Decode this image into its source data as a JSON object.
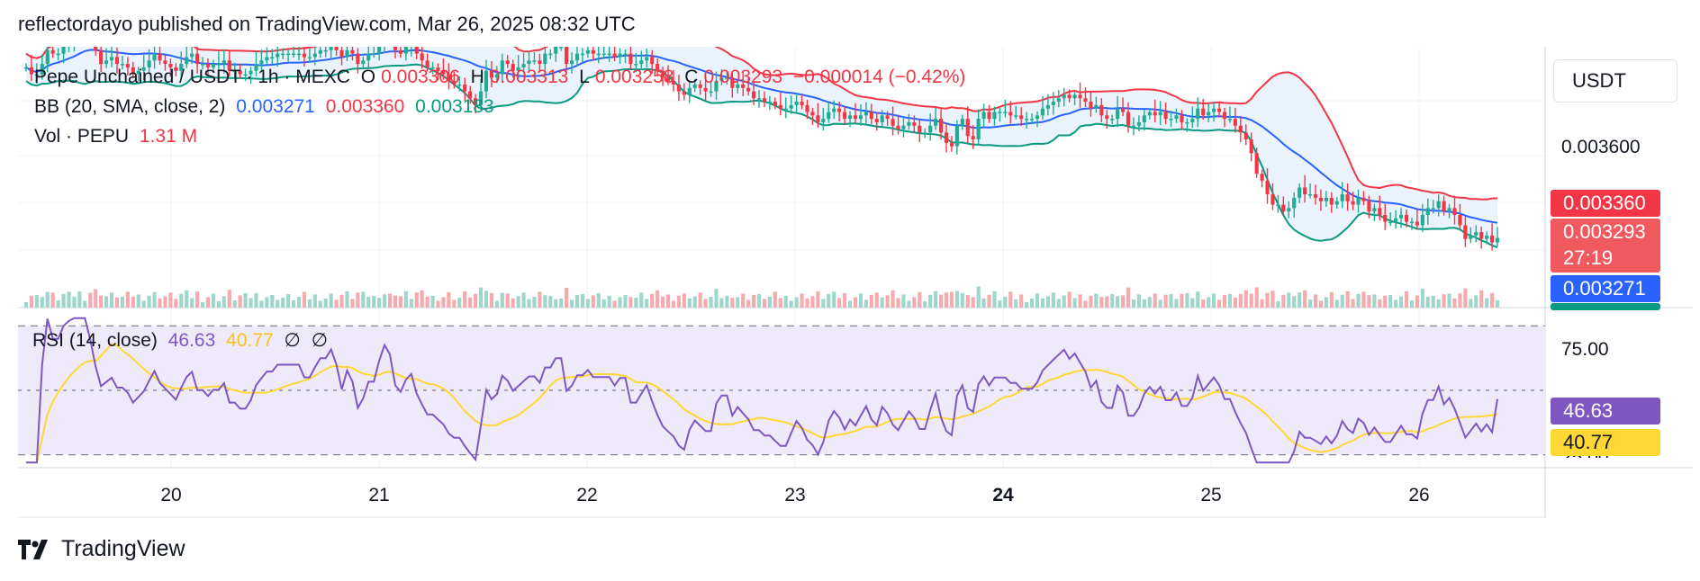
{
  "header": {
    "publisher_line": "reflectordayo published on TradingView.com, Mar 26, 2025 08:32 UTC"
  },
  "legend": {
    "symbol": "Pepe Unchained / USDT · 1h · MEXC",
    "o_label": "O",
    "o_value": "0.003306",
    "h_label": "H",
    "h_value": "0.003313",
    "l_label": "L",
    "l_value": "0.003258",
    "c_label": "C",
    "c_value": "0.003293",
    "change": "−0.000014 (−0.42%)",
    "bb_label": "BB (20, SMA, close, 2)",
    "bb_basis": "0.003271",
    "bb_upper": "0.003360",
    "bb_lower": "0.003183",
    "vol_label": "Vol · PEPU",
    "vol_value": "1.31 M",
    "rsi_label": "RSI (14, close)",
    "rsi_value": "46.63",
    "rsi_ma": "40.77",
    "rsi_na_1": "∅",
    "rsi_na_2": "∅"
  },
  "axis": {
    "currency": "USDT",
    "price_tick": "0.003600",
    "rsi_upper_tick": "75.00",
    "rsi_lower_tick": "25.00",
    "x_ticks": [
      "20",
      "21",
      "22",
      "23",
      "24",
      "25",
      "26"
    ]
  },
  "price_tags": {
    "bb_upper": "0.003360",
    "last_price": "0.003293",
    "countdown": "27:19",
    "bb_basis": "0.003271"
  },
  "rsi_tags": {
    "rsi": "46.63",
    "rsi_ma": "40.77"
  },
  "footer": {
    "brand": "TradingView"
  },
  "colors": {
    "up": "#22ab94",
    "down": "#f23645",
    "bb_basis": "#2962ff",
    "bb_upper": "#f23645",
    "bb_lower": "#089981",
    "bb_fill": "#eaf3fb",
    "rsi_line": "#7e57c2",
    "rsi_ma": "#fdd835",
    "rsi_band": "#efeafa",
    "grid": "#f0f3fa"
  },
  "chart_data": [
    {
      "type": "candlestick",
      "title": "Pepe Unchained / USDT · 1h · MEXC",
      "ylim": [
        0.00309,
        0.00385
      ],
      "x_ticks": [
        "20",
        "21",
        "22",
        "23",
        "24",
        "25",
        "26"
      ],
      "close_series": [
        0.00379,
        0.00377,
        0.00377,
        0.0038,
        0.00384,
        0.00383,
        0.00383,
        0.00385,
        0.00386,
        0.00388,
        0.00391,
        0.00392,
        0.00388,
        0.00384,
        0.0038,
        0.00381,
        0.00382,
        0.0038,
        0.0038,
        0.00379,
        0.00377,
        0.00378,
        0.00379,
        0.00381,
        0.00383,
        0.00381,
        0.0038,
        0.00379,
        0.00378,
        0.0038,
        0.00382,
        0.00383,
        0.0038,
        0.0038,
        0.00379,
        0.0038,
        0.0038,
        0.00381,
        0.00378,
        0.00378,
        0.00377,
        0.00377,
        0.00378,
        0.0038,
        0.00381,
        0.00382,
        0.00382,
        0.00383,
        0.00383,
        0.00383,
        0.00383,
        0.00383,
        0.00382,
        0.00382,
        0.00383,
        0.00384,
        0.00384,
        0.00385,
        0.00384,
        0.00382,
        0.00384,
        0.00383,
        0.0038,
        0.00381,
        0.00383,
        0.00383,
        0.00386,
        0.00389,
        0.00388,
        0.00384,
        0.00383,
        0.00385,
        0.00386,
        0.00383,
        0.00381,
        0.00379,
        0.00379,
        0.00378,
        0.00377,
        0.00375,
        0.00374,
        0.00374,
        0.00372,
        0.0037,
        0.00368,
        0.00372,
        0.00378,
        0.00376,
        0.00377,
        0.00381,
        0.0038,
        0.00378,
        0.00379,
        0.0038,
        0.00381,
        0.00381,
        0.0038,
        0.00383,
        0.00383,
        0.00385,
        0.00385,
        0.0038,
        0.00381,
        0.00383,
        0.00383,
        0.00384,
        0.00383,
        0.00383,
        0.00383,
        0.00383,
        0.00382,
        0.00383,
        0.00383,
        0.0038,
        0.0038,
        0.00381,
        0.00382,
        0.0038,
        0.00378,
        0.00376,
        0.00375,
        0.00374,
        0.00372,
        0.00371,
        0.00373,
        0.00374,
        0.00373,
        0.00372,
        0.00372,
        0.00375,
        0.00376,
        0.00376,
        0.00373,
        0.00374,
        0.00373,
        0.00372,
        0.0037,
        0.0037,
        0.00369,
        0.00369,
        0.00368,
        0.00367,
        0.00367,
        0.00368,
        0.00369,
        0.00368,
        0.00366,
        0.00365,
        0.00363,
        0.00364,
        0.00366,
        0.00367,
        0.00366,
        0.00364,
        0.00365,
        0.00364,
        0.00365,
        0.00366,
        0.00364,
        0.00363,
        0.00365,
        0.00364,
        0.00362,
        0.00361,
        0.00362,
        0.00363,
        0.00362,
        0.0036,
        0.0036,
        0.00362,
        0.00364,
        0.0036,
        0.00357,
        0.00356,
        0.00362,
        0.00364,
        0.00359,
        0.00358,
        0.00364,
        0.00366,
        0.00364,
        0.00366,
        0.00366,
        0.00366,
        0.00365,
        0.00365,
        0.00364,
        0.00364,
        0.00364,
        0.00365,
        0.00367,
        0.00368,
        0.00369,
        0.0037,
        0.00371,
        0.0037,
        0.00371,
        0.0037,
        0.00369,
        0.00367,
        0.00368,
        0.00365,
        0.00364,
        0.00364,
        0.00367,
        0.00366,
        0.00362,
        0.00362,
        0.00363,
        0.00365,
        0.00366,
        0.00365,
        0.00366,
        0.00364,
        0.00364,
        0.00365,
        0.00363,
        0.00363,
        0.00364,
        0.00367,
        0.00365,
        0.00366,
        0.00367,
        0.00366,
        0.00364,
        0.00364,
        0.00362,
        0.0036,
        0.00358,
        0.00354,
        0.00348,
        0.00346,
        0.00342,
        0.00339,
        0.00339,
        0.00337,
        0.00338,
        0.00341,
        0.00344,
        0.00342,
        0.00342,
        0.00341,
        0.0034,
        0.00341,
        0.00339,
        0.0034,
        0.00342,
        0.0034,
        0.00339,
        0.00341,
        0.0034,
        0.00337,
        0.00338,
        0.00336,
        0.00334,
        0.00334,
        0.00335,
        0.00336,
        0.00334,
        0.00334,
        0.00333,
        0.00336,
        0.00338,
        0.00338,
        0.0034,
        0.00337,
        0.00338,
        0.00336,
        0.00333,
        0.00329,
        0.0033,
        0.00331,
        0.00329,
        0.0033,
        0.00328,
        0.003293
      ],
      "bb_basis_last": 0.003271,
      "bb_upper_last": 0.00336,
      "bb_lower_last": 0.003183
    },
    {
      "type": "bar",
      "title": "Vol · PEPU",
      "last_value": "1.31 M"
    },
    {
      "type": "line",
      "title": "RSI (14, close)",
      "ylim": [
        20,
        80
      ],
      "levels": [
        75,
        50,
        25
      ],
      "rsi_last": 46.63,
      "rsi_ma_last": 40.77
    }
  ]
}
